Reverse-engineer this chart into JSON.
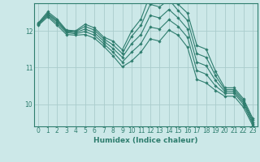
{
  "xlabel": "Humidex (Indice chaleur)",
  "ylabel": "",
  "background_color": "#cce8e8",
  "grid_color": "#aacccc",
  "line_color": "#2e7d6e",
  "marker_color": "#2e7d6e",
  "xlim": [
    -0.5,
    23.5
  ],
  "ylim": [
    9.4,
    12.75
  ],
  "yticks": [
    10,
    11,
    12
  ],
  "xticks": [
    0,
    1,
    2,
    3,
    4,
    5,
    6,
    7,
    8,
    9,
    10,
    11,
    12,
    13,
    14,
    15,
    16,
    17,
    18,
    19,
    20,
    21,
    22,
    23
  ],
  "series": [
    {
      "x": [
        0,
        1,
        2,
        3,
        4,
        5,
        6,
        7,
        8,
        9,
        10,
        11,
        12,
        13,
        14,
        15,
        16,
        17,
        18,
        19,
        20,
        21,
        22,
        23
      ],
      "y": [
        12.22,
        12.52,
        12.32,
        12.02,
        12.0,
        12.18,
        12.08,
        11.83,
        11.72,
        11.48,
        12.0,
        12.32,
        13.0,
        12.9,
        13.1,
        12.72,
        12.48,
        11.6,
        11.5,
        10.9,
        10.45,
        10.45,
        10.15,
        9.62
      ]
    },
    {
      "x": [
        0,
        1,
        2,
        3,
        4,
        5,
        6,
        7,
        8,
        9,
        10,
        11,
        12,
        13,
        14,
        15,
        16,
        17,
        18,
        19,
        20,
        21,
        22,
        23
      ],
      "y": [
        12.2,
        12.48,
        12.28,
        12.0,
        11.98,
        12.12,
        12.02,
        11.78,
        11.62,
        11.38,
        11.85,
        12.15,
        12.72,
        12.65,
        12.85,
        12.55,
        12.28,
        11.38,
        11.28,
        10.78,
        10.4,
        10.4,
        10.1,
        9.57
      ]
    },
    {
      "x": [
        0,
        1,
        2,
        3,
        4,
        5,
        6,
        7,
        8,
        9,
        10,
        11,
        12,
        13,
        14,
        15,
        16,
        17,
        18,
        19,
        20,
        21,
        22,
        23
      ],
      "y": [
        12.18,
        12.45,
        12.25,
        11.98,
        11.95,
        12.05,
        11.95,
        11.72,
        11.52,
        11.28,
        11.65,
        11.9,
        12.42,
        12.35,
        12.58,
        12.35,
        12.05,
        11.15,
        11.05,
        10.65,
        10.35,
        10.35,
        10.05,
        9.52
      ]
    },
    {
      "x": [
        0,
        1,
        2,
        3,
        4,
        5,
        6,
        7,
        8,
        9,
        10,
        11,
        12,
        13,
        14,
        15,
        16,
        17,
        18,
        19,
        20,
        21,
        22,
        23
      ],
      "y": [
        12.18,
        12.42,
        12.2,
        11.95,
        11.92,
        11.98,
        11.88,
        11.65,
        11.42,
        11.15,
        11.42,
        11.65,
        12.1,
        12.05,
        12.3,
        12.12,
        11.82,
        10.92,
        10.82,
        10.5,
        10.3,
        10.3,
        10.0,
        9.47
      ]
    },
    {
      "x": [
        0,
        1,
        2,
        3,
        4,
        5,
        6,
        7,
        8,
        9,
        10,
        11,
        12,
        13,
        14,
        15,
        16,
        17,
        18,
        19,
        20,
        21,
        22,
        23
      ],
      "y": [
        12.15,
        12.38,
        12.15,
        11.9,
        11.88,
        11.9,
        11.8,
        11.58,
        11.32,
        11.02,
        11.18,
        11.42,
        11.78,
        11.72,
        12.02,
        11.88,
        11.55,
        10.68,
        10.58,
        10.38,
        10.22,
        10.22,
        9.92,
        9.42
      ]
    }
  ]
}
